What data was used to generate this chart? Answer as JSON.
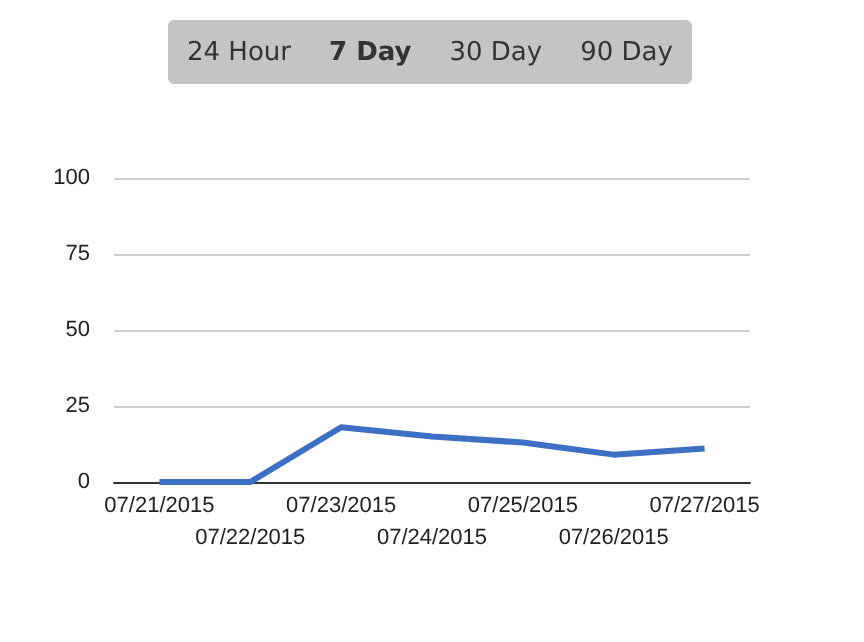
{
  "chart_data": {
    "type": "line",
    "categories": [
      "07/21/2015",
      "07/22/2015",
      "07/23/2015",
      "07/24/2015",
      "07/25/2015",
      "07/26/2015",
      "07/27/2015"
    ],
    "series": [
      {
        "color": "#3d6fc4",
        "values": [
          0,
          0,
          18,
          15,
          13,
          9,
          11
        ]
      }
    ],
    "ylim": [
      0,
      100
    ],
    "yticks": [
      0,
      25,
      50,
      75,
      100
    ],
    "grid": "y",
    "marker": "none",
    "line_style": "solid",
    "annotations": [
      "24 Hour",
      "7 Day",
      "30 Day",
      "90 Day"
    ]
  }
}
